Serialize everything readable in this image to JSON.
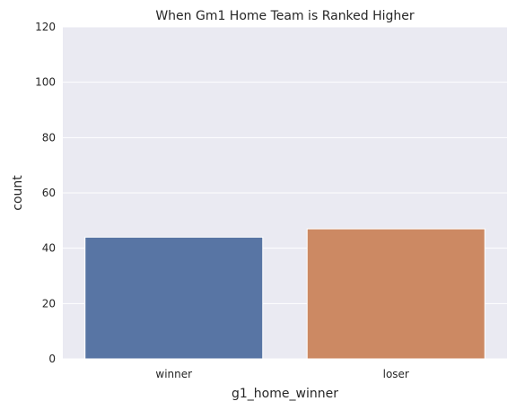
{
  "chart_data": {
    "type": "bar",
    "title": "When Gm1 Home Team is Ranked Higher",
    "xlabel": "g1_home_winner",
    "ylabel": "count",
    "categories": [
      "winner",
      "loser"
    ],
    "values": [
      44,
      47
    ],
    "colors": [
      "#5875a4",
      "#cc8963"
    ],
    "ylim": [
      0,
      120
    ],
    "yticks": [
      0,
      20,
      40,
      60,
      80,
      100,
      120
    ],
    "grid": true,
    "background": "#eaeaf2"
  }
}
